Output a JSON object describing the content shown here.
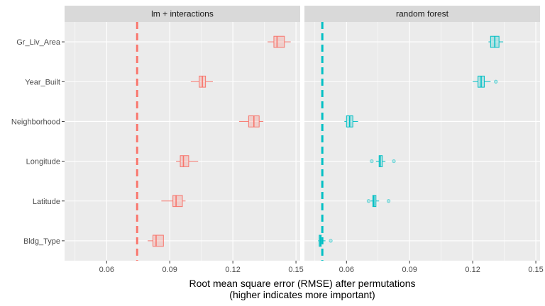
{
  "chart_data": {
    "type": "boxplot",
    "title": "",
    "xlabel": "Root mean square error (RMSE) after permutations",
    "xlabel_line2": "(higher indicates more important)",
    "ylabel": "",
    "xlim": [
      0.04,
      0.152
    ],
    "x_ticks": [
      0.06,
      0.09,
      0.12,
      0.15
    ],
    "x_tick_labels": [
      "0.06",
      "0.09",
      "0.12",
      "0.15"
    ],
    "categories": [
      "Gr_Liv_Area",
      "Year_Built",
      "Neighborhood",
      "Longitude",
      "Latitude",
      "Bldg_Type"
    ],
    "grid": true,
    "legend": "none",
    "panels": [
      {
        "name": "lm + interactions",
        "color": "#F8766D",
        "fill": "#F8766D",
        "baseline": 0.0745,
        "boxes": [
          {
            "category": "Gr_Liv_Area",
            "min": 0.1365,
            "q1": 0.1395,
            "median": 0.141,
            "q3": 0.1445,
            "max": 0.1475,
            "outliers": []
          },
          {
            "category": "Year_Built",
            "min": 0.1,
            "q1": 0.104,
            "median": 0.1055,
            "q3": 0.107,
            "max": 0.1105,
            "outliers": []
          },
          {
            "category": "Neighborhood",
            "min": 0.123,
            "q1": 0.1275,
            "median": 0.13,
            "q3": 0.1325,
            "max": 0.1345,
            "outliers": []
          },
          {
            "category": "Longitude",
            "min": 0.093,
            "q1": 0.095,
            "median": 0.0965,
            "q3": 0.099,
            "max": 0.1035,
            "outliers": []
          },
          {
            "category": "Latitude",
            "min": 0.086,
            "q1": 0.0915,
            "median": 0.093,
            "q3": 0.096,
            "max": 0.0975,
            "outliers": []
          },
          {
            "category": "Bldg_Type",
            "min": 0.0795,
            "q1": 0.082,
            "median": 0.0835,
            "q3": 0.087,
            "max": 0.087,
            "outliers": []
          }
        ]
      },
      {
        "name": "random forest",
        "color": "#00BFC4",
        "fill": "#00BFC4",
        "baseline": 0.0485,
        "boxes": [
          {
            "category": "Gr_Liv_Area",
            "min": 0.1275,
            "q1": 0.1285,
            "median": 0.1305,
            "q3": 0.1325,
            "max": 0.1345,
            "outliers": []
          },
          {
            "category": "Year_Built",
            "min": 0.12,
            "q1": 0.1225,
            "median": 0.124,
            "q3": 0.1255,
            "max": 0.1285,
            "outliers": [
              0.131
            ]
          },
          {
            "category": "Neighborhood",
            "min": 0.059,
            "q1": 0.06,
            "median": 0.0615,
            "q3": 0.063,
            "max": 0.0655,
            "outliers": []
          },
          {
            "category": "Longitude",
            "min": 0.074,
            "q1": 0.0755,
            "median": 0.076,
            "q3": 0.077,
            "max": 0.0785,
            "outliers": [
              0.072,
              0.0825
            ]
          },
          {
            "category": "Latitude",
            "min": 0.0715,
            "q1": 0.0725,
            "median": 0.073,
            "q3": 0.074,
            "max": 0.0755,
            "outliers": [
              0.0705,
              0.08
            ]
          },
          {
            "category": "Bldg_Type",
            "min": 0.0465,
            "q1": 0.047,
            "median": 0.0475,
            "q3": 0.048,
            "max": 0.05,
            "outliers": [
              0.0525
            ]
          }
        ]
      }
    ]
  }
}
